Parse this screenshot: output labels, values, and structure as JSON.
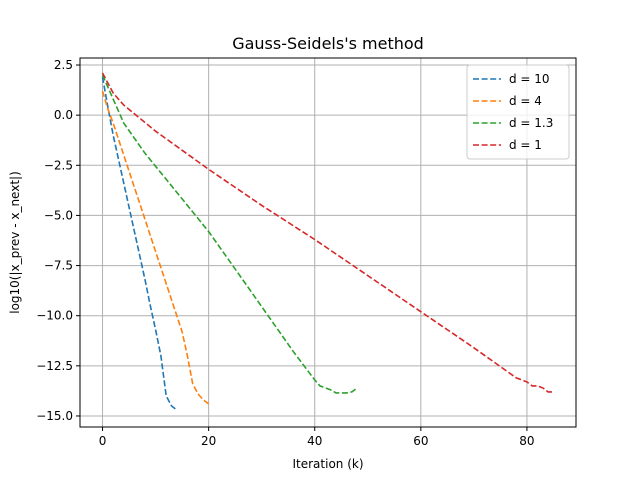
{
  "chart_data": {
    "type": "line",
    "title": "Gauss-Seidels's method",
    "xlabel": "Iteration (k)",
    "ylabel": "log10(|x_prev - x_next|)",
    "xlim": [
      -4.25,
      89.25
    ],
    "ylim": [
      -15.55,
      2.85
    ],
    "xticks": [
      0,
      20,
      40,
      60,
      80
    ],
    "yticks": [
      2.5,
      0.0,
      -2.5,
      -5.0,
      -7.5,
      -10.0,
      -12.5,
      -15.0
    ],
    "ytick_labels": [
      "2.5",
      "0.0",
      "−2.5",
      "−5.0",
      "−7.5",
      "−10.0",
      "−12.5",
      "−15.0"
    ],
    "grid": true,
    "legend_position": "top-right",
    "series": [
      {
        "name": "d = 10",
        "color": "#1f77b4",
        "x": [
          0,
          1,
          2,
          3,
          4,
          5,
          6,
          7,
          8,
          9,
          10,
          11,
          12,
          13,
          14
        ],
        "y": [
          1.9,
          0.4,
          -1.0,
          -2.2,
          -3.4,
          -4.6,
          -5.8,
          -7.0,
          -8.2,
          -9.5,
          -10.7,
          -12.0,
          -14.0,
          -14.5,
          -14.7
        ]
      },
      {
        "name": "d = 4",
        "color": "#ff7f0e",
        "x": [
          0,
          1,
          2,
          3,
          4,
          5,
          6,
          7,
          8,
          9,
          10,
          11,
          12,
          13,
          14,
          15,
          16,
          17,
          18,
          19,
          20
        ],
        "y": [
          1.2,
          0.3,
          -0.4,
          -1.2,
          -2.0,
          -2.8,
          -3.6,
          -4.4,
          -5.2,
          -6.0,
          -6.8,
          -7.6,
          -8.4,
          -9.2,
          -10.0,
          -10.8,
          -12.0,
          -13.4,
          -13.9,
          -14.2,
          -14.4
        ]
      },
      {
        "name": "d = 1.3",
        "color": "#2ca02c",
        "x": [
          0,
          4,
          8,
          12,
          16,
          20,
          24,
          28,
          32,
          36,
          40,
          41,
          42,
          43,
          44,
          45,
          46,
          47,
          48
        ],
        "y": [
          2.0,
          -0.4,
          -1.9,
          -3.2,
          -4.5,
          -5.8,
          -7.3,
          -8.8,
          -10.3,
          -11.8,
          -13.2,
          -13.5,
          -13.6,
          -13.7,
          -13.85,
          -13.85,
          -13.85,
          -13.8,
          -13.6
        ]
      },
      {
        "name": "d = 1",
        "color": "#d62728",
        "x": [
          0,
          1,
          2,
          4,
          10,
          20,
          30,
          40,
          50,
          60,
          70,
          78,
          79,
          80,
          81,
          82,
          83,
          84,
          85
        ],
        "y": [
          2.1,
          1.6,
          1.1,
          0.5,
          -0.8,
          -2.7,
          -4.5,
          -6.2,
          -8.0,
          -9.8,
          -11.6,
          -13.1,
          -13.2,
          -13.3,
          -13.5,
          -13.5,
          -13.6,
          -13.8,
          -13.8
        ]
      }
    ]
  }
}
